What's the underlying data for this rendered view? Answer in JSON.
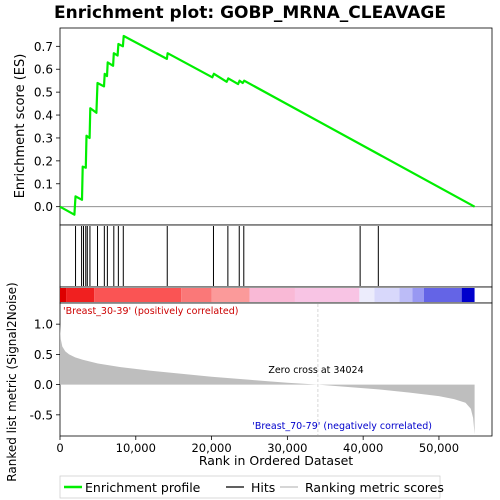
{
  "chart_data": {
    "type": "line",
    "title": "Enrichment plot: GOBP_MRNA_CLEAVAGE",
    "es_panel": {
      "ylabel": "Enrichment score (ES)",
      "ylim": [
        -0.08,
        0.78
      ],
      "yticks": [
        0.0,
        0.1,
        0.2,
        0.3,
        0.4,
        0.5,
        0.6,
        0.7
      ],
      "ytick_labels": [
        "0.0",
        "0.1",
        "0.2",
        "0.3",
        "0.4",
        "0.5",
        "0.6",
        "0.7"
      ],
      "series": [
        {
          "name": "Enrichment profile",
          "color": "#00ee00",
          "x": [
            0,
            1900,
            2050,
            2900,
            3000,
            3400,
            3500,
            3900,
            4000,
            4800,
            4950,
            5800,
            5900,
            6200,
            6300,
            7000,
            7100,
            7600,
            7700,
            8300,
            8400,
            14100,
            14200,
            20100,
            20300,
            22000,
            22200,
            23500,
            23700,
            24100,
            24300,
            54700
          ],
          "y": [
            0.0,
            -0.035,
            0.045,
            0.03,
            0.175,
            0.17,
            0.31,
            0.3,
            0.43,
            0.41,
            0.54,
            0.525,
            0.58,
            0.57,
            0.63,
            0.615,
            0.67,
            0.66,
            0.71,
            0.7,
            0.745,
            0.645,
            0.67,
            0.565,
            0.58,
            0.545,
            0.56,
            0.535,
            0.55,
            0.54,
            0.55,
            0.0
          ]
        }
      ]
    },
    "hits": {
      "name": "Hits",
      "positions": [
        2050,
        2850,
        3100,
        3400,
        3600,
        3950,
        4950,
        5850,
        6250,
        7100,
        7700,
        8350,
        14150,
        20250,
        22150,
        23650,
        24250,
        39600,
        42000
      ]
    },
    "metric_panel": {
      "ylabel": "Ranked list metric (Signal2Noise)",
      "xlabel": "Rank in Ordered Dataset",
      "ylim": [
        -0.85,
        1.35
      ],
      "yticks": [
        -0.5,
        0.0,
        0.5,
        1.0
      ],
      "ytick_labels": [
        "-0.5",
        "0.0",
        "0.5",
        "1.0"
      ],
      "xlim": [
        0,
        57000
      ],
      "xticks": [
        0,
        10000,
        20000,
        30000,
        40000,
        50000
      ],
      "xtick_labels": [
        "0",
        "10,000",
        "20,000",
        "30,000",
        "40,000",
        "50,000"
      ],
      "curve_x": [
        0,
        100,
        300,
        700,
        1200,
        2000,
        3000,
        5000,
        8000,
        12000,
        16000,
        20000,
        25000,
        30000,
        34024,
        38000,
        42000,
        46000,
        50000,
        52000,
        53500,
        54200,
        54500,
        54700
      ],
      "curve_y": [
        1.0,
        0.75,
        0.63,
        0.55,
        0.5,
        0.45,
        0.41,
        0.35,
        0.29,
        0.23,
        0.18,
        0.13,
        0.08,
        0.03,
        0.0,
        -0.04,
        -0.08,
        -0.13,
        -0.19,
        -0.24,
        -0.3,
        -0.4,
        -0.55,
        -0.82
      ],
      "zero_cross_label": "Zero cross at 34024",
      "zero_cross_x": 34024,
      "pos_label": "'Breast_30-39' (positively correlated)",
      "neg_label": "'Breast_70-79' (negatively correlated)",
      "pos_color": "#cc0000",
      "neg_color": "#0000cc"
    },
    "heat_bands": [
      {
        "x0": 0,
        "x1": 800,
        "color": "#dd0000"
      },
      {
        "x0": 800,
        "x1": 4500,
        "color": "#f02020"
      },
      {
        "x0": 4500,
        "x1": 16000,
        "color": "#fa5454"
      },
      {
        "x0": 16000,
        "x1": 20000,
        "color": "#fa7878"
      },
      {
        "x0": 20000,
        "x1": 25000,
        "color": "#fb9a9a"
      },
      {
        "x0": 25000,
        "x1": 31000,
        "color": "#f9b9d6"
      },
      {
        "x0": 31000,
        "x1": 39500,
        "color": "#f8c4e4"
      },
      {
        "x0": 39500,
        "x1": 41500,
        "color": "#ececfc"
      },
      {
        "x0": 41500,
        "x1": 44800,
        "color": "#d8d8fb"
      },
      {
        "x0": 44800,
        "x1": 46500,
        "color": "#bcbcf7"
      },
      {
        "x0": 46500,
        "x1": 48000,
        "color": "#9898f2"
      },
      {
        "x0": 48000,
        "x1": 53000,
        "color": "#6464e6"
      },
      {
        "x0": 53000,
        "x1": 54700,
        "color": "#0000cc"
      }
    ],
    "legend": {
      "placement": "bottom",
      "items": [
        {
          "label": "Enrichment profile",
          "color": "#00ee00"
        },
        {
          "label": "Hits",
          "color": "#000000"
        },
        {
          "label": "Ranking metric scores",
          "color": "#bebebe"
        }
      ]
    }
  }
}
